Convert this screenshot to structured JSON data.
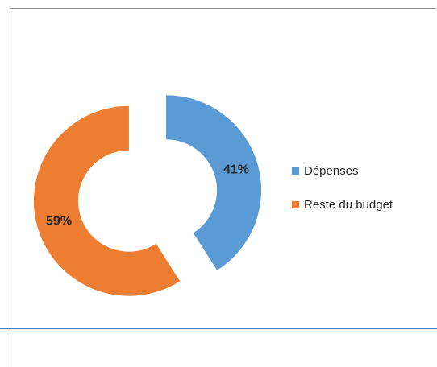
{
  "chart_data": {
    "type": "pie",
    "variant": "donut-exploded",
    "title": "",
    "categories": [
      "Dépenses",
      "Reste du budget"
    ],
    "values": [
      41,
      59
    ],
    "data_labels": [
      "41%",
      "59%"
    ],
    "colors": [
      "#5b9bd5",
      "#ed7d31"
    ],
    "legend_position": "right",
    "legend": [
      {
        "label": "Dépenses",
        "color": "#5b9bd5"
      },
      {
        "label": "Reste du budget",
        "color": "#ed7d31"
      }
    ]
  }
}
